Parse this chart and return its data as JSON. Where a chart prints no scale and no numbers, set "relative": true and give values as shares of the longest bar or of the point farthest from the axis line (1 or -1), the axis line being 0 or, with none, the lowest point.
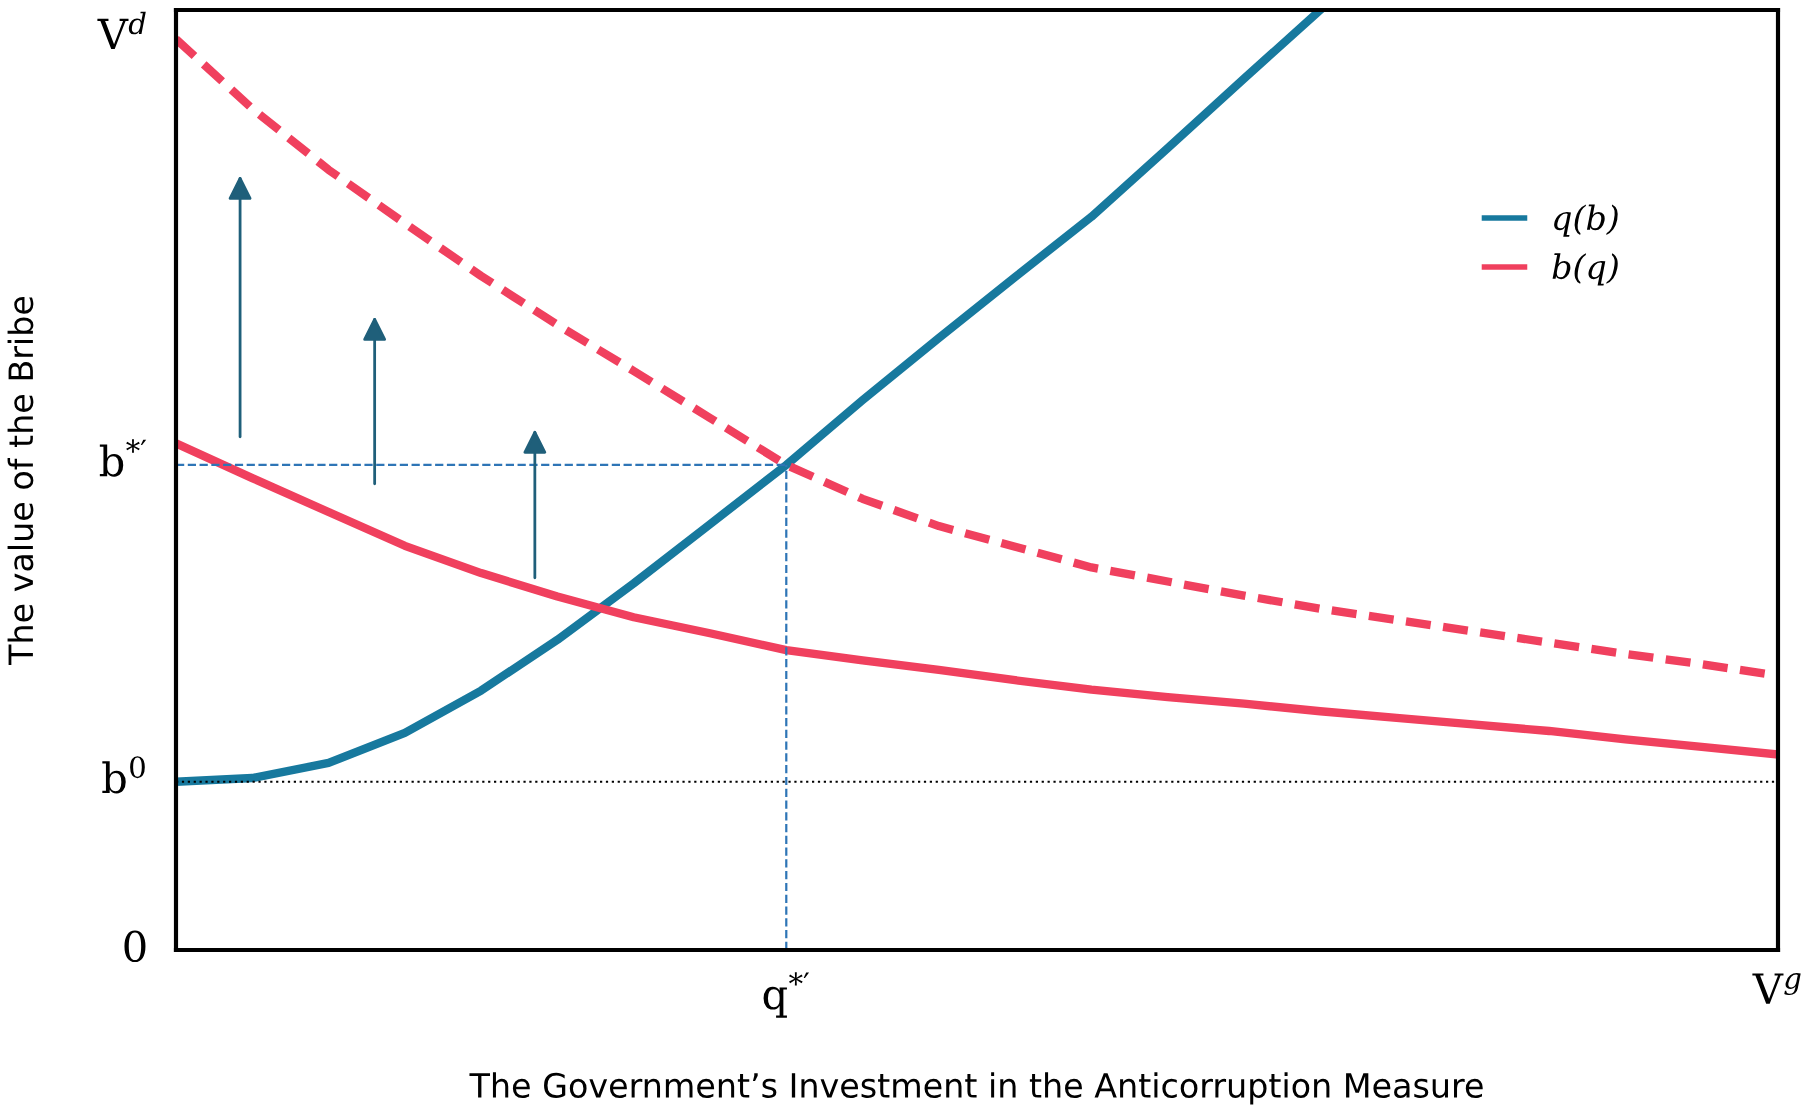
{
  "chart_data": {
    "type": "line",
    "relative": true,
    "xlabel": "The Government’s Investment in the Anticorruption Measure",
    "ylabel": "The value of the Bribe",
    "categories": [
      null,
      null,
      null,
      null,
      null,
      null,
      null,
      null,
      "q$^{*′}$",
      null,
      null,
      null,
      null,
      null,
      null,
      null,
      null,
      null,
      null,
      null,
      null,
      "V$^{g}$"
    ],
    "annotations": [
      "V$^{d}$",
      "0"
    ],
    "series": [
      {
        "name": "q(b)",
        "color": "#17799e",
        "values": [
          0.179,
          0.183,
          0.199,
          0.231,
          0.276,
          0.33,
          0.39,
          0.453,
          0.516,
          0.585,
          0.651,
          0.716,
          0.78,
          0.853,
          0.927,
          1.0,
          null,
          null,
          null,
          null,
          null,
          null
        ]
      },
      {
        "name": "b(q)",
        "color": "#f0405e",
        "values": [
          0.539,
          0.502,
          0.466,
          0.43,
          0.401,
          0.376,
          0.354,
          0.337,
          0.319,
          0.308,
          0.298,
          0.287,
          0.277,
          0.269,
          0.262,
          0.254,
          0.247,
          0.24,
          0.233,
          0.224,
          0.216,
          0.208
        ]
      },
      {
        "color": "#f0405e",
        "line_style": "dashed",
        "values": [
          0.969,
          0.895,
          0.83,
          0.773,
          0.717,
          0.665,
          0.616,
          0.566,
          0.516,
          0.48,
          0.451,
          0.429,
          0.407,
          0.392,
          0.377,
          0.363,
          0.351,
          0.339,
          0.327,
          0.315,
          0.304,
          0.292
        ]
      }
    ],
    "ref_lines": [
      {
        "axis": "y",
        "value": 0.179,
        "label": "b$^{0}$",
        "color": "#000000",
        "line_style": "dotted"
      },
      {
        "axis": "y",
        "value": 0.516,
        "label": "b$^{*′}$",
        "color": "#2e75b6",
        "line_style": "dashed"
      },
      {
        "axis": "x",
        "value": "q$^{*′}$",
        "color": "#2e75b6",
        "line_style": "dashed"
      }
    ],
    "legend": "right"
  }
}
